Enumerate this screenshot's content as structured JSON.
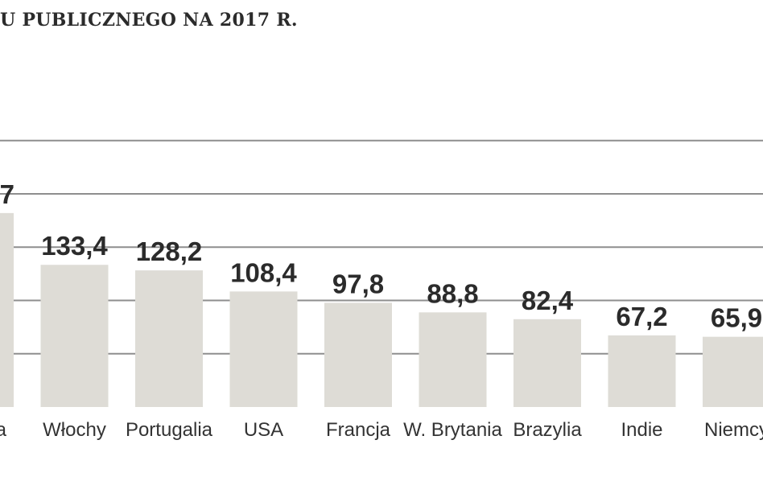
{
  "header": {
    "title": "U PUBLICZNEGO NA 2017 R."
  },
  "chart_data": {
    "type": "bar",
    "title": "U PUBLICZNEGO NA 2017 R.",
    "categories": [
      "a",
      "Włochy",
      "Portugalia",
      "USA",
      "Francja",
      "W. Brytania",
      "Brazylia",
      "Indie",
      "Niemcy"
    ],
    "values": [
      null,
      133.4,
      128.2,
      108.4,
      97.8,
      88.8,
      82.4,
      67.2,
      65.9
    ],
    "value_labels": [
      "7",
      "133,4",
      "128,2",
      "108,4",
      "97,8",
      "88,8",
      "82,4",
      "67,2",
      "65,9"
    ],
    "ylim": [
      0,
      200
    ],
    "grid": true,
    "colors": {
      "bar": "#dedcd6",
      "grid": "#8e8e8e",
      "text": "#2b2b2b"
    }
  }
}
